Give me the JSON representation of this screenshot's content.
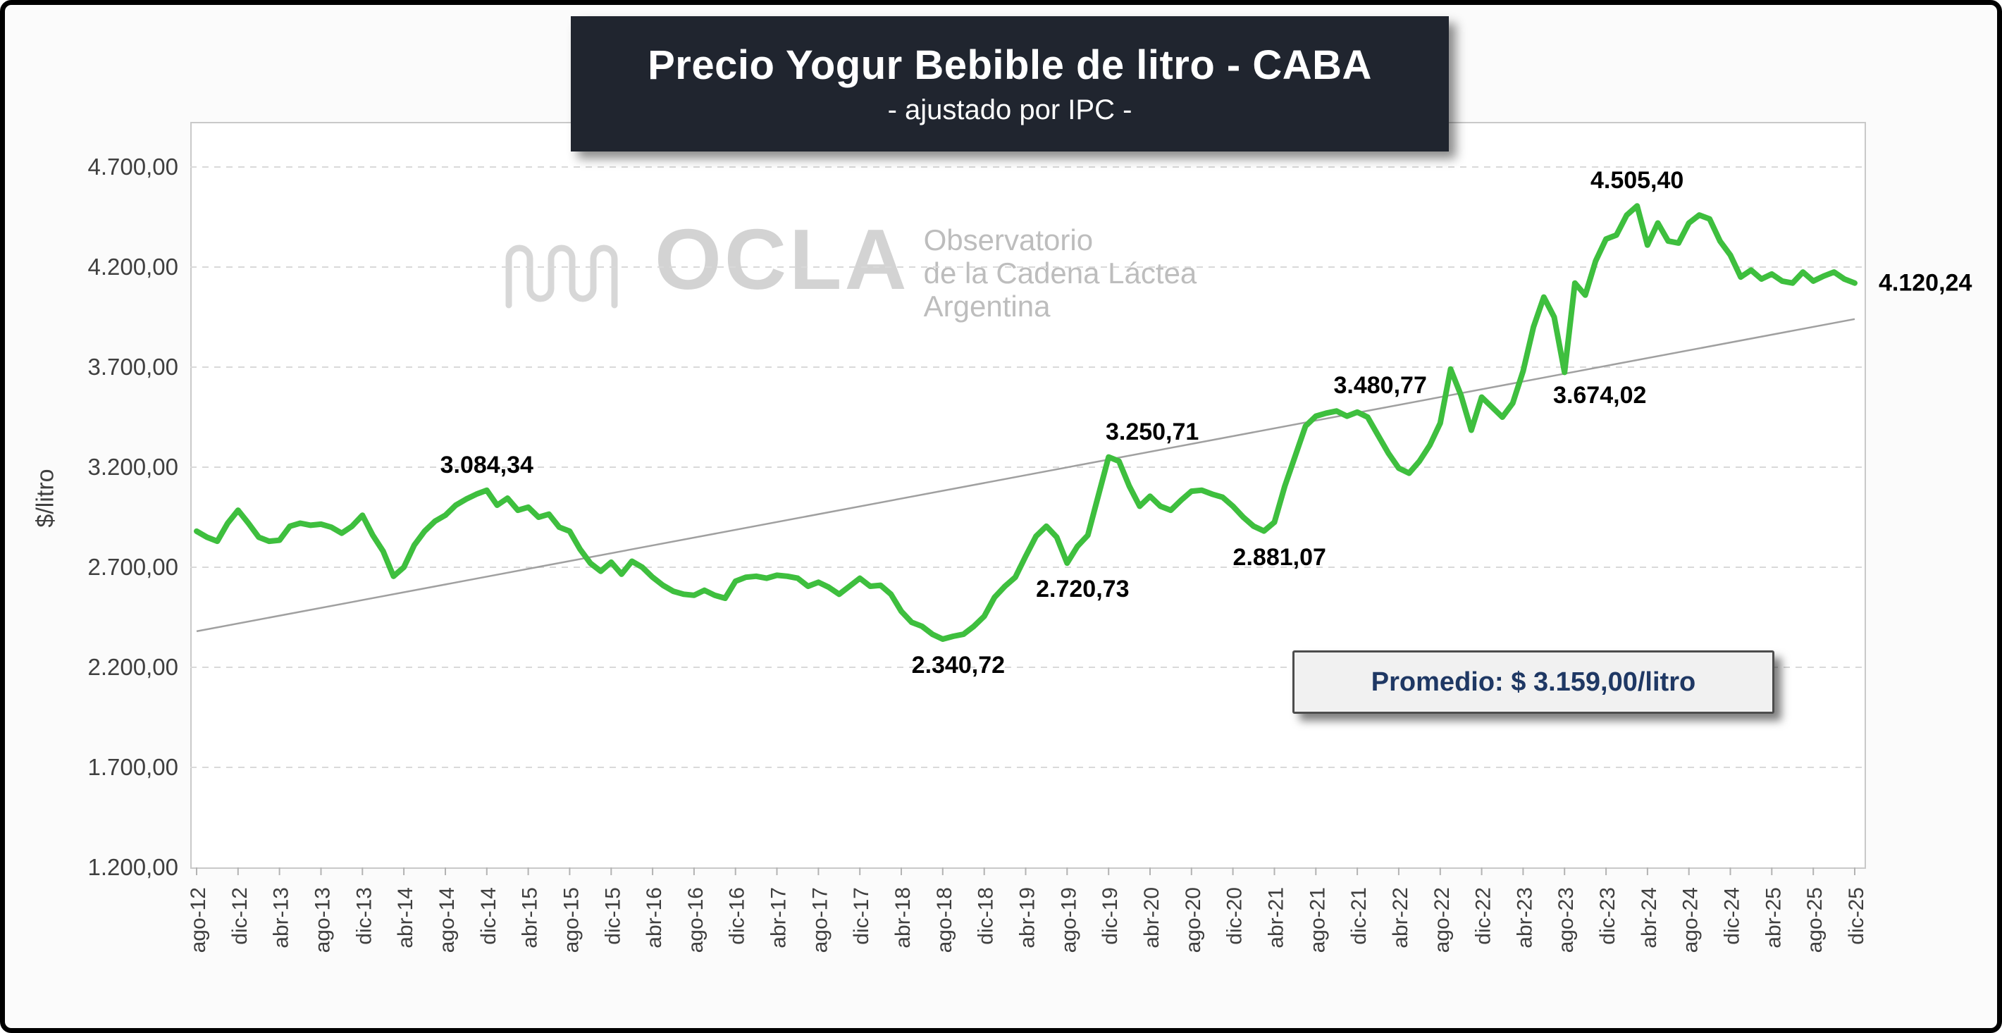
{
  "title": {
    "main": "Precio Yogur Bebible de litro - CABA",
    "subtitle": "- ajustado por IPC -"
  },
  "y_axis": {
    "title": "$/litro",
    "ticks": [
      {
        "label": "4.700,00",
        "value": 4700
      },
      {
        "label": "4.200,00",
        "value": 4200
      },
      {
        "label": "3.700,00",
        "value": 3700
      },
      {
        "label": "3.200,00",
        "value": 3200
      },
      {
        "label": "2.700,00",
        "value": 2700
      },
      {
        "label": "2.200,00",
        "value": 2200
      },
      {
        "label": "1.700,00",
        "value": 1700
      },
      {
        "label": "1.200,00",
        "value": 1200
      }
    ]
  },
  "watermark": {
    "acronym": "OCLA",
    "line1": "Observatorio",
    "line2": "de la Cadena Láctea",
    "line3": "Argentina"
  },
  "average_box": {
    "text": "Promedio: $ 3.159,00/litro"
  },
  "colors": {
    "series": "#3ebf3e",
    "trend": "#a0a0a0",
    "grid": "#d9d9d9",
    "title_bg": "#20252f",
    "avg_text": "#1f3864",
    "axis_text": "#3f3f3f"
  },
  "chart_data": {
    "type": "line",
    "title": "Precio Yogur Bebible de litro - CABA (ajustado por IPC)",
    "series_name": "Precio yogur bebible $/litro ajustado por IPC",
    "frequency": "monthly",
    "x_start": "ago-12",
    "x_end": "dic-25",
    "ylim": [
      1200,
      4700
    ],
    "y_tick_step": 500,
    "grid": "dashed-horizontal",
    "x_tick_labels": [
      "ago-12",
      "dic-12",
      "abr-13",
      "ago-13",
      "dic-13",
      "abr-14",
      "ago-14",
      "dic-14",
      "abr-15",
      "ago-15",
      "dic-15",
      "abr-16",
      "ago-16",
      "dic-16",
      "abr-17",
      "ago-17",
      "dic-17",
      "abr-18",
      "ago-18",
      "dic-18",
      "abr-19",
      "ago-19",
      "dic-19",
      "abr-20",
      "ago-20",
      "dic-20",
      "abr-21",
      "ago-21",
      "dic-21",
      "abr-22",
      "ago-22",
      "dic-22",
      "abr-23",
      "ago-23",
      "dic-23",
      "abr-24",
      "ago-24",
      "dic-24",
      "abr-25",
      "ago-25",
      "dic-25"
    ],
    "values": [
      2880,
      2850,
      2830,
      2920,
      2985,
      2920,
      2850,
      2830,
      2835,
      2905,
      2920,
      2910,
      2915,
      2900,
      2870,
      2905,
      2960,
      2860,
      2780,
      2655,
      2700,
      2810,
      2880,
      2930,
      2960,
      3010,
      3040,
      3065,
      3084.34,
      3010,
      3045,
      2985,
      3000,
      2950,
      2965,
      2900,
      2880,
      2790,
      2720,
      2680,
      2725,
      2665,
      2730,
      2700,
      2650,
      2610,
      2580,
      2565,
      2560,
      2585,
      2560,
      2545,
      2630,
      2650,
      2655,
      2645,
      2660,
      2655,
      2645,
      2605,
      2625,
      2600,
      2565,
      2605,
      2645,
      2605,
      2610,
      2565,
      2480,
      2425,
      2405,
      2365,
      2340.72,
      2355,
      2365,
      2405,
      2455,
      2550,
      2605,
      2650,
      2755,
      2855,
      2905,
      2850,
      2720.73,
      2805,
      2860,
      3055,
      3250.71,
      3230,
      3105,
      3005,
      3055,
      3005,
      2985,
      3035,
      3080,
      3085,
      3065,
      3050,
      3005,
      2950,
      2905,
      2881.07,
      2925,
      3105,
      3255,
      3405,
      3455,
      3470,
      3480.77,
      3455,
      3475,
      3450,
      3360,
      3270,
      3195,
      3170,
      3230,
      3310,
      3420,
      3690,
      3560,
      3385,
      3550,
      3500,
      3450,
      3520,
      3680,
      3900,
      4050,
      3950,
      3674.02,
      4120,
      4060,
      4230,
      4340,
      4360,
      4460,
      4505.4,
      4310,
      4420,
      4330,
      4320,
      4420,
      4460,
      4440,
      4330,
      4260,
      4150,
      4185,
      4140,
      4165,
      4130,
      4120,
      4175,
      4130,
      4155,
      4175,
      4140,
      4120.24
    ],
    "trendline": {
      "type": "linear",
      "start_value": 2380,
      "end_value": 3940
    },
    "annotations": [
      {
        "index": 28,
        "month": "dic-14",
        "value": 3084.34,
        "label": "3.084,34",
        "placement": "above"
      },
      {
        "index": 72,
        "month": "ago-18",
        "value": 2340.72,
        "label": "2.340,72",
        "placement": "below"
      },
      {
        "index": 84,
        "month": "ago-19",
        "value": 2720.73,
        "label": "2.720,73",
        "placement": "below"
      },
      {
        "index": 88,
        "month": "dic-19",
        "value": 3250.71,
        "label": "3.250,71",
        "placement": "above-right"
      },
      {
        "index": 103,
        "month": "mar-21",
        "value": 2881.07,
        "label": "2.881,07",
        "placement": "below"
      },
      {
        "index": 110,
        "month": "oct-21",
        "value": 3480.77,
        "label": "3.480,77",
        "placement": "above-right"
      },
      {
        "index": 132,
        "month": "ago-23",
        "value": 3674.02,
        "label": "3.674,02",
        "placement": "below-right"
      },
      {
        "index": 139,
        "month": "mar-24",
        "value": 4505.4,
        "label": "4.505,40",
        "placement": "above"
      },
      {
        "index": 160,
        "month": "dic-25",
        "value": 4120.24,
        "label": "4.120,24",
        "placement": "right"
      }
    ]
  }
}
